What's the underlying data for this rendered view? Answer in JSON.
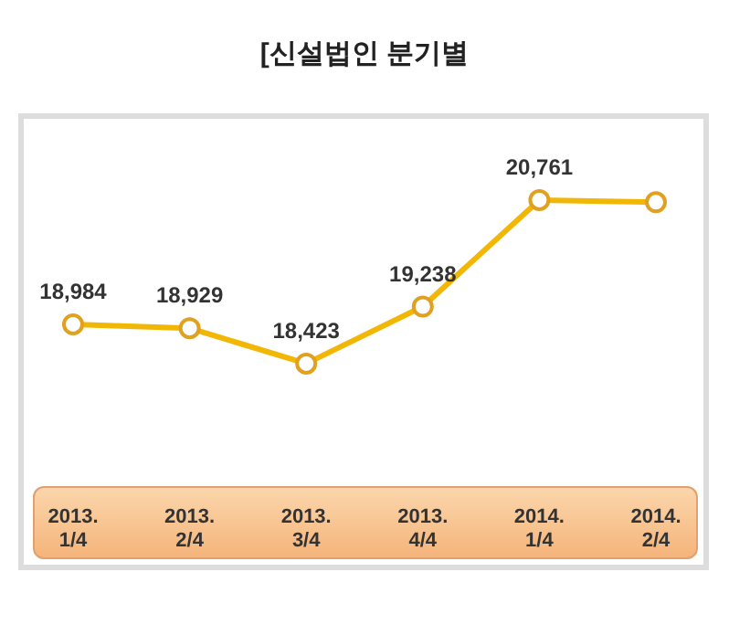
{
  "chart_data": {
    "type": "line",
    "title": "[신설법인 분기별",
    "categories": [
      "2013. 1/4",
      "2013. 2/4",
      "2013. 3/4",
      "2013. 4/4",
      "2014. 1/4",
      "2014. 2/4"
    ],
    "series": [
      {
        "color": "#f2b705",
        "values": [
          18984,
          18929,
          18423,
          19238,
          20761,
          20730
        ],
        "value_labels": [
          "18,984",
          "18,929",
          "18,423",
          "19,238",
          "20,761",
          null
        ]
      }
    ],
    "marker": "circle",
    "line_style": "solid",
    "grid": false,
    "legend": false,
    "tick_labels": "x"
  }
}
